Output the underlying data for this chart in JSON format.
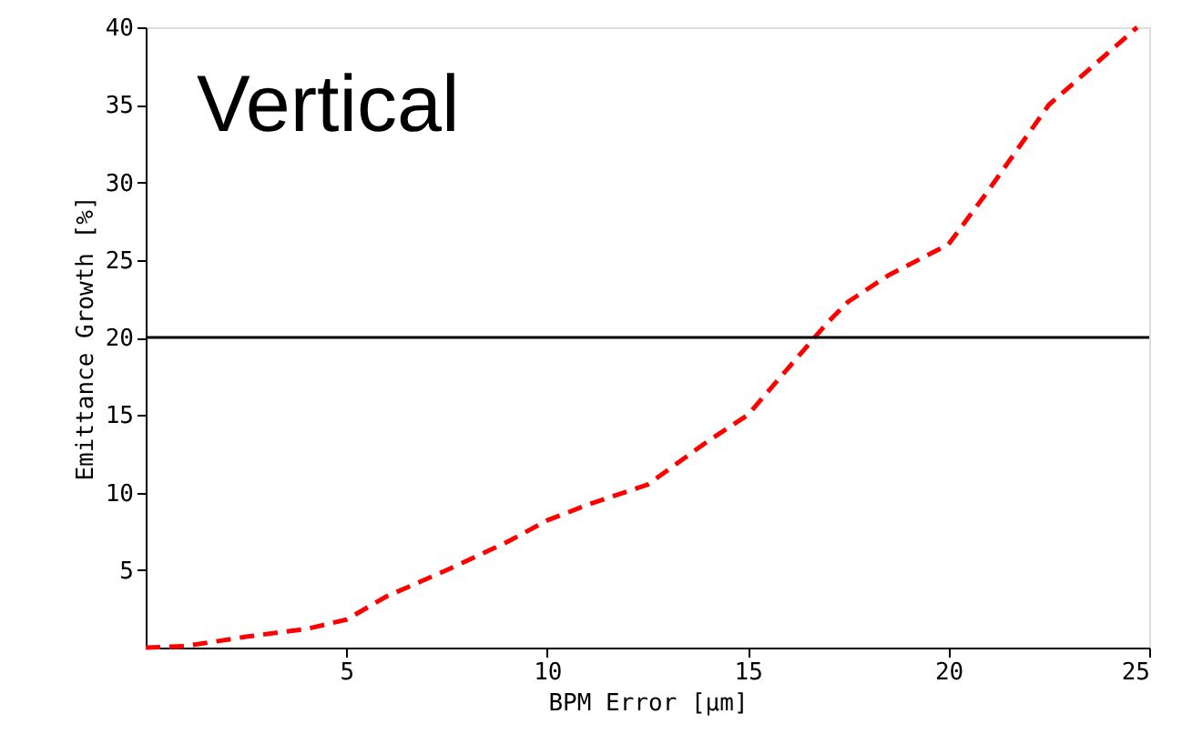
{
  "chart_data": {
    "type": "line",
    "xlabel": "BPM Error [μm]",
    "ylabel": "Emittance Growth [%]",
    "x": [
      0,
      1,
      2.5,
      4,
      5,
      6,
      7.5,
      9,
      10,
      11,
      12.5,
      14,
      15,
      16,
      17,
      17.5,
      18.5,
      20,
      21,
      22.5,
      24.7
    ],
    "series": [
      {
        "color": "#ff0000",
        "values": [
          0,
          0.1,
          0.7,
          1.2,
          1.8,
          3.3,
          5,
          6.8,
          8.2,
          9.2,
          10.5,
          13.3,
          15,
          18,
          21,
          22.3,
          24,
          26,
          29.5,
          35,
          40
        ]
      }
    ],
    "xlim": [
      0,
      25
    ],
    "xticks": [
      5,
      10,
      15,
      20,
      25
    ],
    "ylim": [
      0,
      40
    ],
    "yticks": [
      5,
      10,
      15,
      20,
      25,
      30,
      35,
      40
    ],
    "ref_lines": [
      {
        "axis": "y",
        "value": 20,
        "color": "#000000"
      }
    ],
    "annotations": [
      {
        "text": "Vertical"
      }
    ],
    "line_style": "dashed",
    "marker": "none",
    "grid": false
  }
}
